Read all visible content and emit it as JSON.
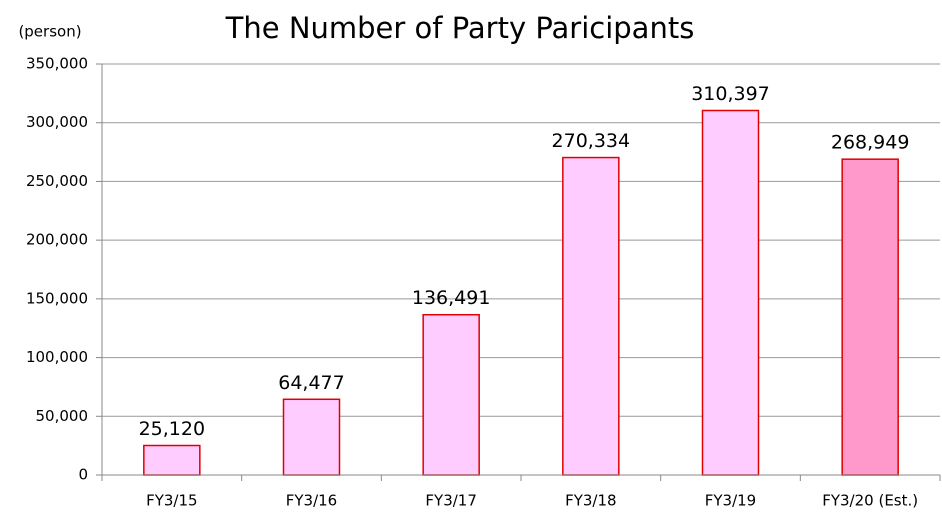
{
  "chart_data": {
    "type": "bar",
    "title": "The Number of Party Paricipants",
    "unit_label": "(person)",
    "categories": [
      "FY3/15",
      "FY3/16",
      "FY3/17",
      "FY3/18",
      "FY3/19",
      "FY3/20 (Est.)"
    ],
    "values": [
      25120,
      64477,
      136491,
      270334,
      310397,
      268949
    ],
    "value_labels": [
      "25,120",
      "64,477",
      "136,491",
      "270,334",
      "310,397",
      "268,949"
    ],
    "colors": [
      "#ffccff",
      "#ffccff",
      "#ffccff",
      "#ffccff",
      "#ffccff",
      "#ff99cc"
    ],
    "edge_color": "#e00000",
    "ylim": [
      0,
      350000
    ],
    "yticks": [
      0,
      {
        "value": 50000,
        "label": "50,000"
      },
      {
        "value": 100000,
        "label": "100,000"
      },
      {
        "value": 150000,
        "label": "150,000"
      },
      {
        "value": 200000,
        "label": "200,000"
      },
      {
        "value": 250000,
        "label": "250,000"
      },
      {
        "value": 300000,
        "label": "300,000"
      },
      {
        "value": 350000,
        "label": "350,000"
      }
    ],
    "grid": true
  }
}
